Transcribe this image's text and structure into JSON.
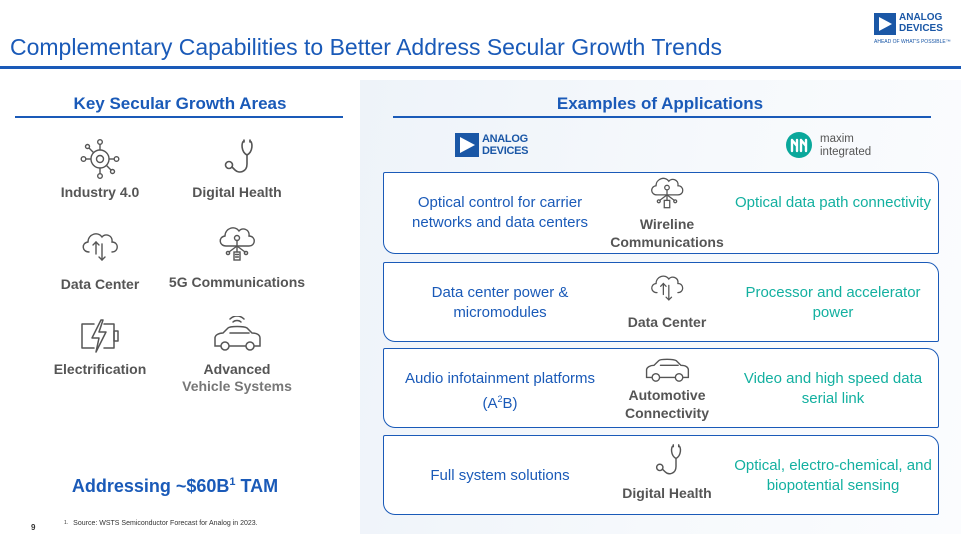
{
  "header": {
    "title": "Complementary Capabilities to Better Address Secular Growth Trends",
    "logo": {
      "line1": "ANALOG",
      "line2": "DEVICES",
      "tagline": "AHEAD OF WHAT'S POSSIBLE™"
    }
  },
  "left_section": {
    "heading": "Key Secular Growth Areas",
    "areas": [
      {
        "label": "Industry 4.0",
        "icon": "industry-network-icon"
      },
      {
        "label": "Digital Health",
        "icon": "stethoscope-icon"
      },
      {
        "label": "Data Center",
        "icon": "cloud-arrows-icon"
      },
      {
        "label": "5G Communications",
        "icon": "cloud-network-icon"
      },
      {
        "label": "Electrification",
        "icon": "battery-bolt-icon"
      },
      {
        "label_line1": "Advanced",
        "label_line2": "Vehicle Systems",
        "icon": "connected-car-icon"
      }
    ],
    "tam_prefix": "Addressing ~$60B",
    "tam_sup": "1",
    "tam_suffix": " TAM"
  },
  "right_section": {
    "heading": "Examples of Applications",
    "adi_logo": {
      "line1": "ANALOG",
      "line2": "DEVICES"
    },
    "maxim_logo": {
      "line1": "maxim",
      "line2": "integrated"
    },
    "rows": [
      {
        "left": "Optical control for carrier networks and data centers",
        "center_line1": "Wireline",
        "center_line2": "Communications",
        "right": "Optical data path connectivity"
      },
      {
        "left": "Data center power & micromodules",
        "center_line1": "Data Center",
        "right": "Processor and accelerator power"
      },
      {
        "left_pre": "Audio infotainment platforms (A",
        "left_sup": "2",
        "left_post": "B)",
        "center_line1": "Automotive",
        "center_line2": "Connectivity",
        "right": "Video and high speed data serial link"
      },
      {
        "left": "Full system solutions",
        "center_line1": "Digital Health",
        "right": "Optical, electro-chemical, and biopotential sensing"
      }
    ]
  },
  "footer": {
    "page_number": "9",
    "footnote_num": "1.",
    "footnote": "Source: WSTS Semiconductor Forecast for Analog in 2023."
  },
  "colors": {
    "brand_blue": "#1a5ab8",
    "maxim_teal": "#13b0a0",
    "label_gray": "#555555"
  }
}
